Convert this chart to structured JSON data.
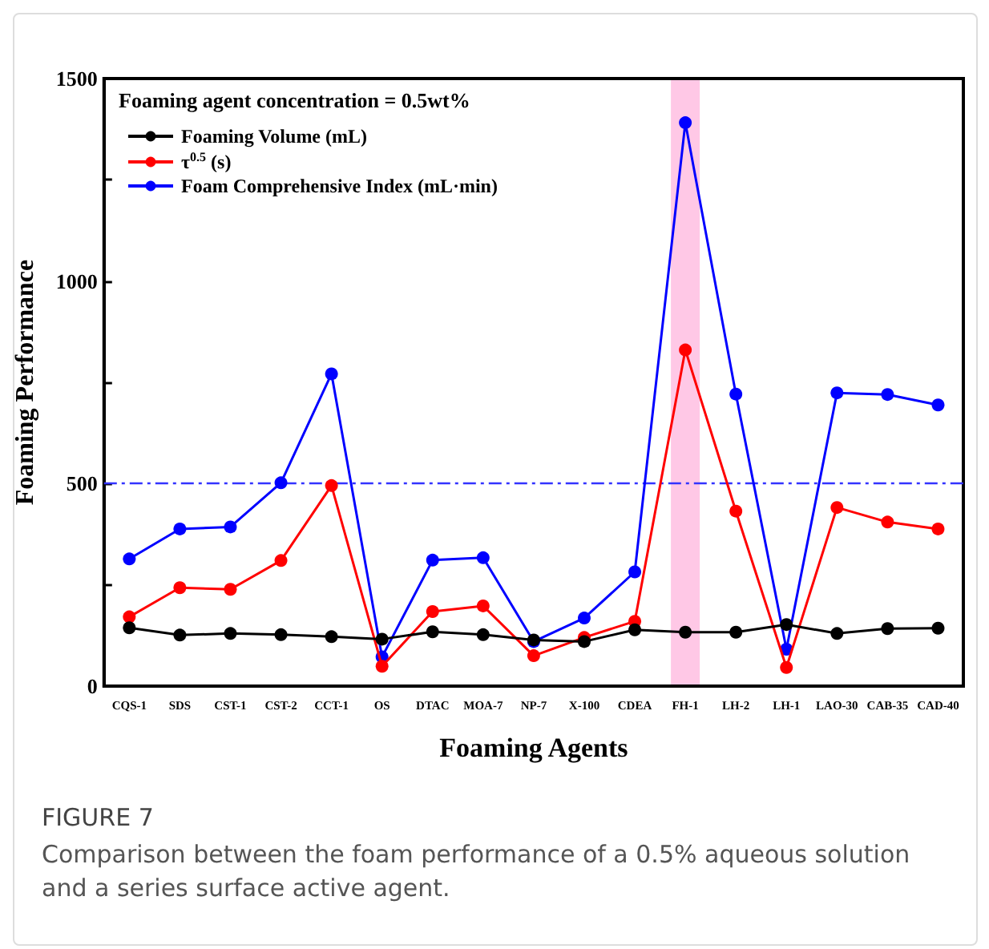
{
  "chart_data": {
    "type": "line",
    "xlabel": "Foaming Agents",
    "ylabel": "Foaming Performance",
    "categories": [
      "CQS-1",
      "SDS",
      "CST-1",
      "CST-2",
      "CCT-1",
      "OS",
      "DTAC",
      "MOA-7",
      "NP-7",
      "X-100",
      "CDEA",
      "FH-1",
      "LH-2",
      "LH-1",
      "LAO-30",
      "CAB-35",
      "CAD-40"
    ],
    "series": [
      {
        "name": "Foaming Volume (mL)",
        "color": "#000000",
        "values": [
          144,
          126,
          130,
          127,
          122,
          116,
          134,
          127,
          114,
          110,
          139,
          133,
          133,
          152,
          130,
          142,
          143
        ]
      },
      {
        "name": "τ$^{0.5}$ (s)",
        "color": "#ff0000",
        "values": [
          171,
          243,
          239,
          310,
          495,
          49,
          184,
          198,
          75,
          120,
          160,
          830,
          432,
          46,
          441,
          405,
          388
        ]
      },
      {
        "name": "Foam Comprehensive Index (mL·min)",
        "color": "#0000ff",
        "values": [
          314,
          388,
          393,
          502,
          771,
          72,
          311,
          317,
          110,
          168,
          282,
          1391,
          721,
          91,
          724,
          720,
          694
        ]
      }
    ],
    "ylim": [
      0,
      1500
    ],
    "yticks": [
      0,
      {
        "value": 250,
        "label": null
      },
      500,
      {
        "value": 750,
        "label": null
      },
      1000,
      {
        "value": 1250,
        "label": null
      },
      1500
    ],
    "ref_lines": [
      {
        "axis": "y",
        "value": 500,
        "color": "#3333ff",
        "line_style": "dashdot"
      }
    ],
    "bands": [
      {
        "axis": "x",
        "from": "FH-1",
        "to": "FH-1",
        "color": "#ffc8e6"
      }
    ],
    "annotations": [
      "Foaming agent concentration = 0.5wt%",
      "FIGURE 7",
      "Comparison between the foam performance of a 0.5% aqueous solution and a series surface active agent."
    ],
    "grid": false,
    "legend": "top left",
    "marker": "circle",
    "line_style": "solid"
  }
}
